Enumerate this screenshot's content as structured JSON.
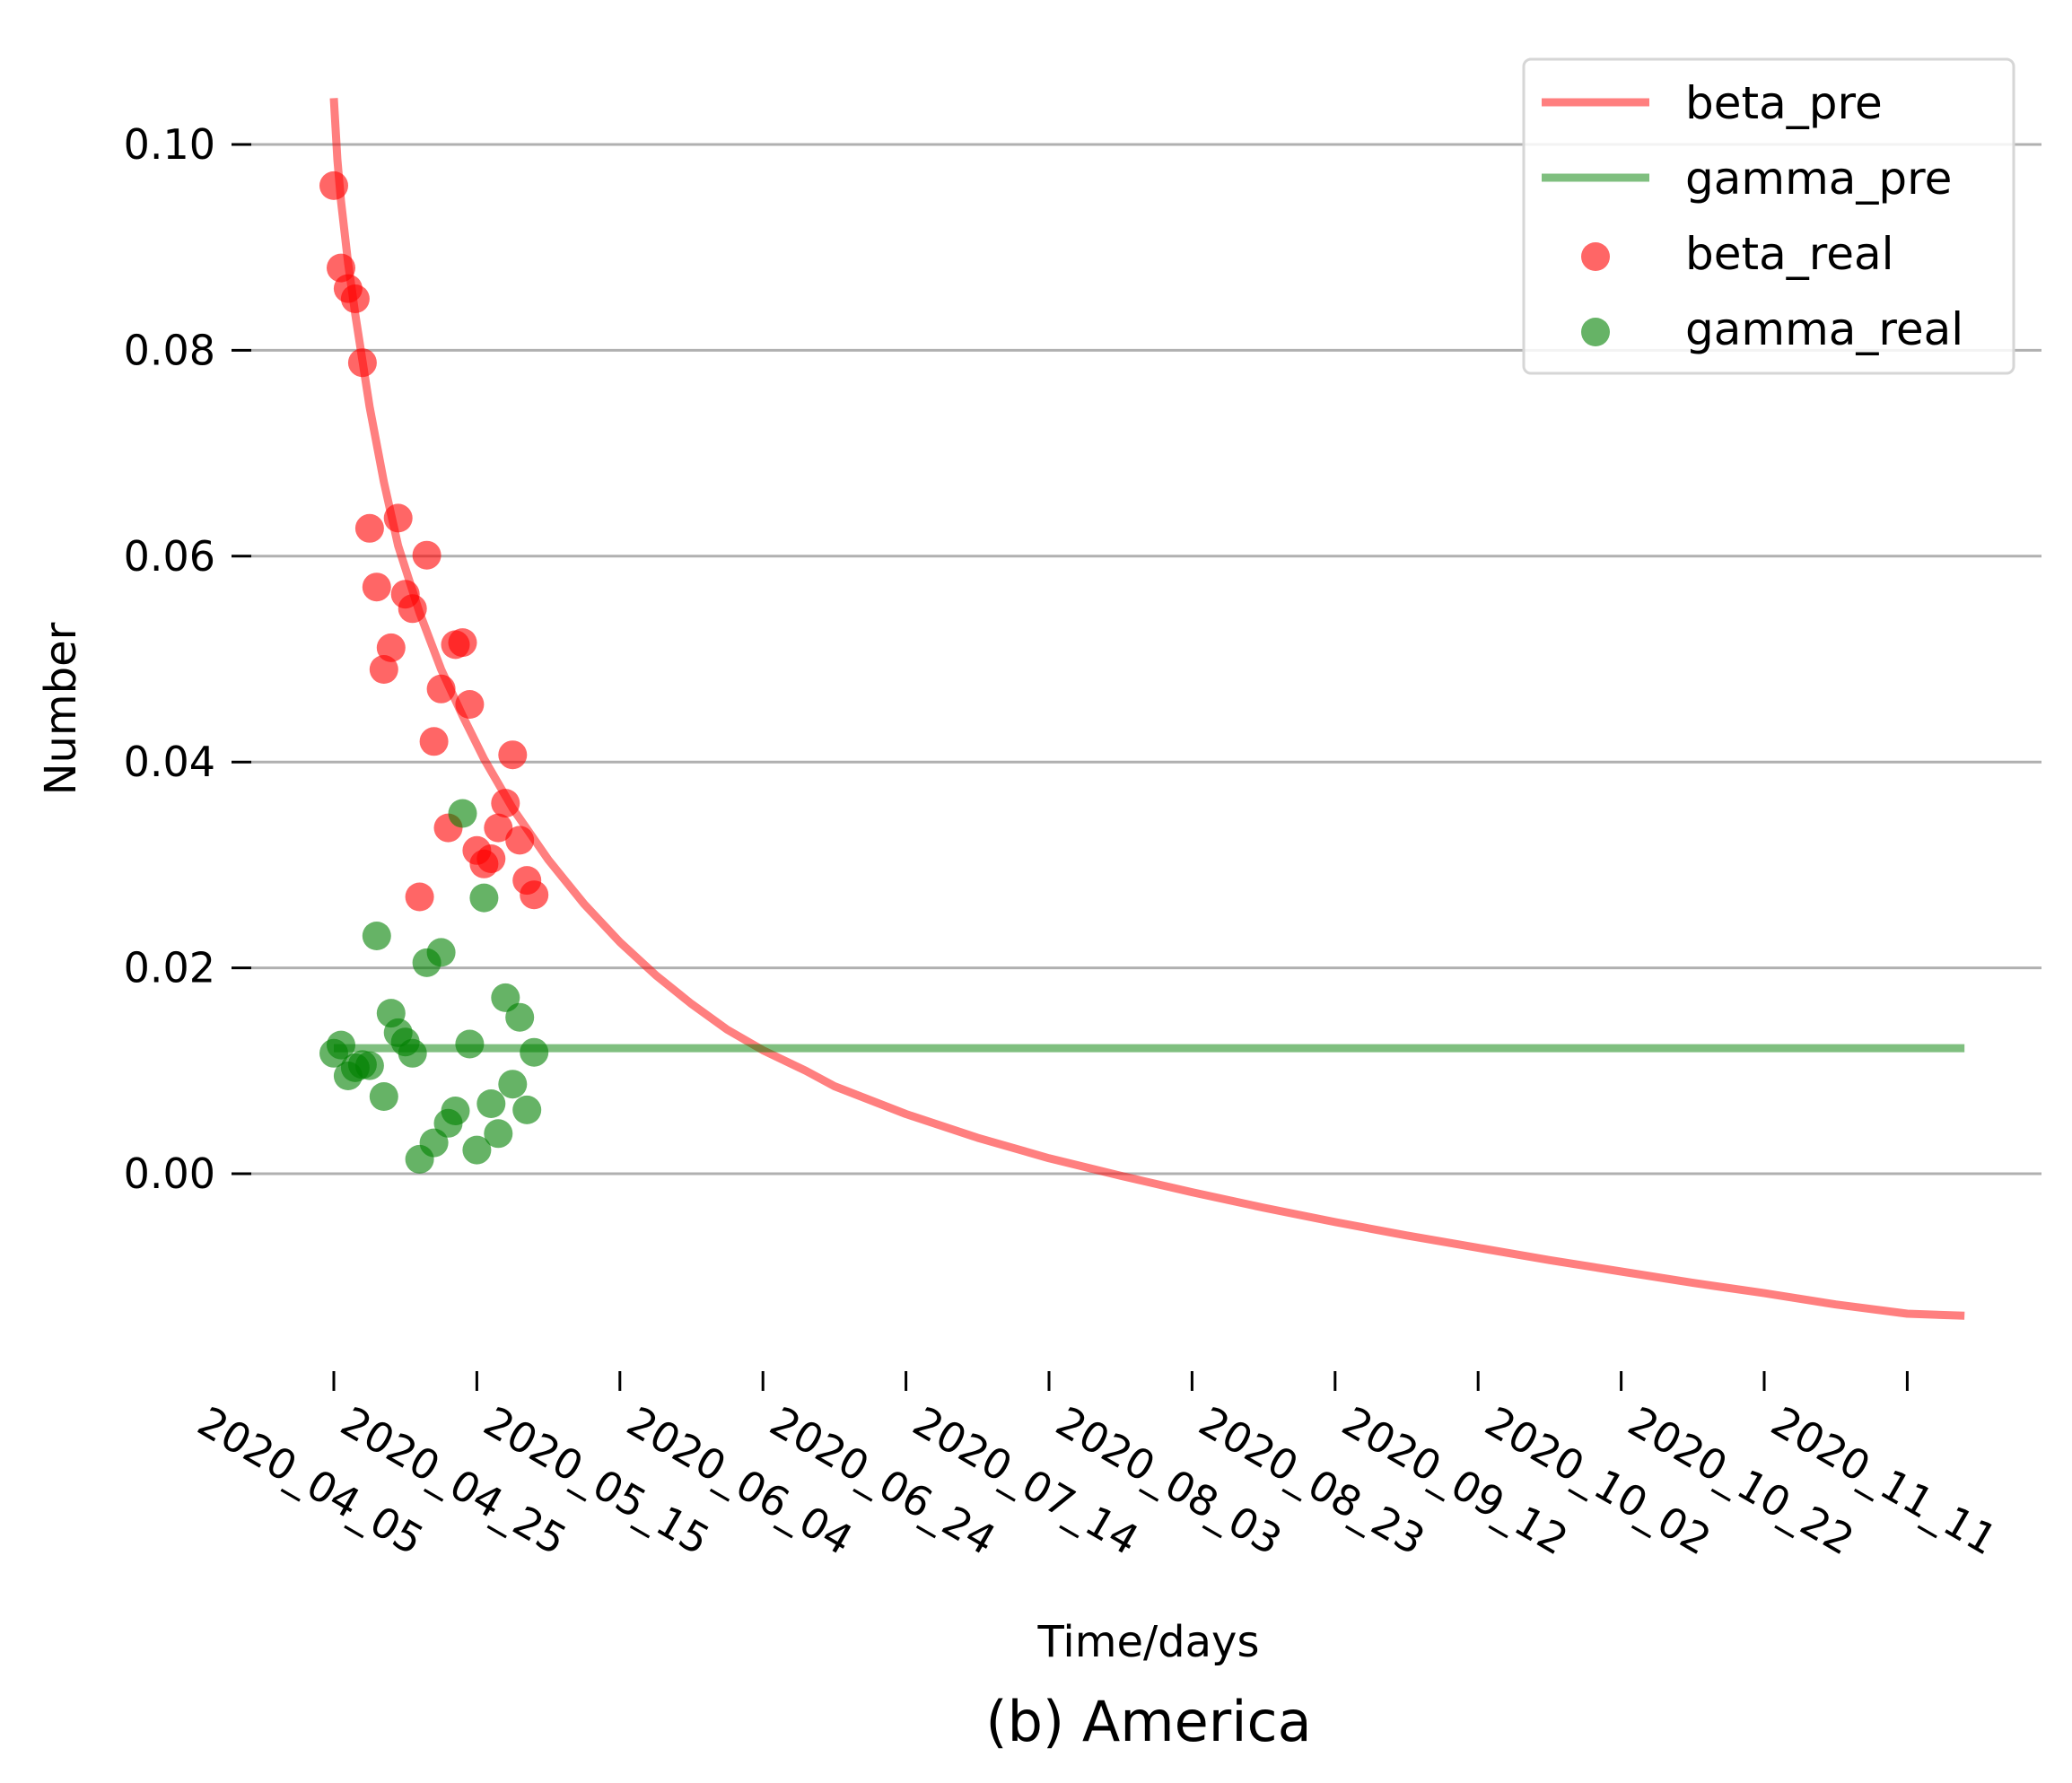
{
  "chart_data": {
    "type": "line+scatter",
    "caption": "(b) America",
    "xlabel": "Time/days",
    "ylabel": "Number",
    "grid": "horizontal",
    "legend_position": "top-right",
    "xlim": [
      -10,
      245
    ],
    "ylim": [
      -0.02,
      0.108
    ],
    "x_ticks": [
      {
        "day": 0,
        "label": "2020_04_05"
      },
      {
        "day": 20,
        "label": "2020_04_25"
      },
      {
        "day": 40,
        "label": "2020_05_15"
      },
      {
        "day": 60,
        "label": "2020_06_04"
      },
      {
        "day": 80,
        "label": "2020_06_24"
      },
      {
        "day": 100,
        "label": "2020_07_14"
      },
      {
        "day": 120,
        "label": "2020_08_03"
      },
      {
        "day": 140,
        "label": "2020_08_23"
      },
      {
        "day": 160,
        "label": "2020_09_12"
      },
      {
        "day": 180,
        "label": "2020_10_02"
      },
      {
        "day": 200,
        "label": "2020_10_22"
      },
      {
        "day": 220,
        "label": "2020_11_11"
      }
    ],
    "y_ticks": [
      {
        "value": 0.0,
        "label": "0.00"
      },
      {
        "value": 0.02,
        "label": "0.02"
      },
      {
        "value": 0.04,
        "label": "0.04"
      },
      {
        "value": 0.06,
        "label": "0.06"
      },
      {
        "value": 0.08,
        "label": "0.08"
      },
      {
        "value": 0.1,
        "label": "0.10"
      }
    ],
    "series": [
      {
        "name": "beta_pre",
        "kind": "line",
        "color": "#ff0000",
        "opacity": 0.5,
        "points": [
          [
            0.0,
            0.1045
          ],
          [
            0.5,
            0.0985
          ],
          [
            1,
            0.0945
          ],
          [
            2,
            0.0885
          ],
          [
            3,
            0.0835
          ],
          [
            4,
            0.079
          ],
          [
            5,
            0.0745
          ],
          [
            7,
            0.0672
          ],
          [
            9,
            0.061
          ],
          [
            12,
            0.0545
          ],
          [
            15,
            0.049
          ],
          [
            18,
            0.0445
          ],
          [
            21,
            0.0403
          ],
          [
            25,
            0.0355
          ],
          [
            30,
            0.0305
          ],
          [
            35,
            0.0262
          ],
          [
            40,
            0.0225
          ],
          [
            45,
            0.0193
          ],
          [
            50,
            0.0165
          ],
          [
            55,
            0.014
          ],
          [
            60,
            0.012
          ],
          [
            66,
            0.01
          ],
          [
            70,
            0.0085
          ],
          [
            80,
            0.0058
          ],
          [
            90,
            0.0035
          ],
          [
            100,
            0.0015
          ],
          [
            110,
            -0.0002
          ],
          [
            120,
            -0.0018
          ],
          [
            130,
            -0.0033
          ],
          [
            140,
            -0.0047
          ],
          [
            150,
            -0.006
          ],
          [
            160,
            -0.0072
          ],
          [
            170,
            -0.0084
          ],
          [
            180,
            -0.0095
          ],
          [
            190,
            -0.0106
          ],
          [
            200,
            -0.0116
          ],
          [
            210,
            -0.0127
          ],
          [
            220,
            -0.0136
          ],
          [
            228,
            -0.0138
          ]
        ]
      },
      {
        "name": "gamma_pre",
        "kind": "line",
        "color": "#008000",
        "opacity": 0.5,
        "points": [
          [
            0,
            0.0122
          ],
          [
            228,
            0.0122
          ]
        ]
      },
      {
        "name": "beta_real",
        "kind": "scatter",
        "color": "#ff0000",
        "opacity": 0.6,
        "points": [
          [
            0,
            0.096
          ],
          [
            1,
            0.088
          ],
          [
            2,
            0.086
          ],
          [
            3,
            0.085
          ],
          [
            4,
            0.0788
          ],
          [
            5,
            0.0627
          ],
          [
            6,
            0.057
          ],
          [
            7,
            0.049
          ],
          [
            8,
            0.0511
          ],
          [
            9,
            0.0637
          ],
          [
            10,
            0.0563
          ],
          [
            11,
            0.0549
          ],
          [
            12,
            0.0269
          ],
          [
            13,
            0.0601
          ],
          [
            14,
            0.042
          ],
          [
            15,
            0.0471
          ],
          [
            16,
            0.0336
          ],
          [
            17,
            0.0514
          ],
          [
            18,
            0.0516
          ],
          [
            19,
            0.0456
          ],
          [
            20,
            0.0314
          ],
          [
            21,
            0.0301
          ],
          [
            22,
            0.0306
          ],
          [
            23,
            0.0336
          ],
          [
            24,
            0.036
          ],
          [
            25,
            0.0407
          ],
          [
            26,
            0.0324
          ],
          [
            27,
            0.0285
          ],
          [
            28,
            0.0271
          ]
        ]
      },
      {
        "name": "gamma_real",
        "kind": "scatter",
        "color": "#008000",
        "opacity": 0.6,
        "points": [
          [
            0,
            0.0117
          ],
          [
            1,
            0.0125
          ],
          [
            2,
            0.0095
          ],
          [
            3,
            0.0103
          ],
          [
            4,
            0.0106
          ],
          [
            5,
            0.0105
          ],
          [
            6,
            0.0231
          ],
          [
            7,
            0.0075
          ],
          [
            8,
            0.0156
          ],
          [
            9,
            0.0137
          ],
          [
            10,
            0.0128
          ],
          [
            11,
            0.0117
          ],
          [
            12,
            0.0014
          ],
          [
            13,
            0.0205
          ],
          [
            14,
            0.003
          ],
          [
            15,
            0.0215
          ],
          [
            16,
            0.0049
          ],
          [
            17,
            0.0061
          ],
          [
            18,
            0.035
          ],
          [
            19,
            0.0126
          ],
          [
            20,
            0.0023
          ],
          [
            21,
            0.0268
          ],
          [
            22,
            0.0068
          ],
          [
            23,
            0.0039
          ],
          [
            24,
            0.0171
          ],
          [
            25,
            0.0087
          ],
          [
            26,
            0.0152
          ],
          [
            27,
            0.0062
          ],
          [
            28,
            0.0118
          ]
        ]
      }
    ],
    "legend": [
      {
        "label": "beta_pre",
        "kind": "line",
        "color": "#ff0000"
      },
      {
        "label": "gamma_pre",
        "kind": "line",
        "color": "#008000"
      },
      {
        "label": "beta_real",
        "kind": "scatter",
        "color": "#ff0000"
      },
      {
        "label": "gamma_real",
        "kind": "scatter",
        "color": "#008000"
      }
    ]
  }
}
